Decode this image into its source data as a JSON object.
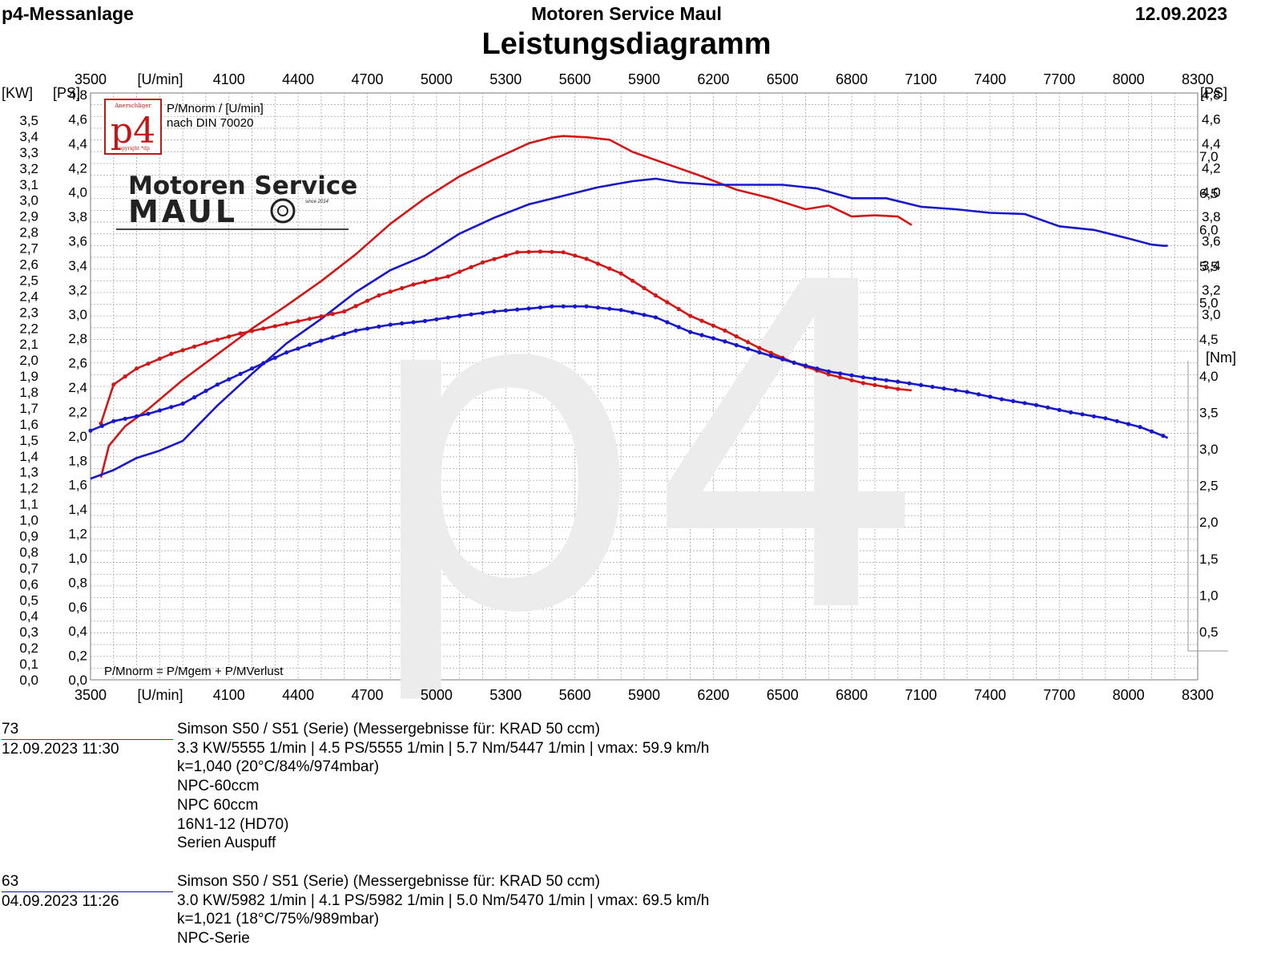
{
  "header": {
    "left": "p4-Messanlage",
    "center": "Motoren Service Maul",
    "right": "12.09.2023",
    "title": "Leistungsdiagramm"
  },
  "chart_data": {
    "type": "line",
    "title": "Leistungsdiagramm",
    "x_unit_label": "[U/min]",
    "x_ticks": [
      3500,
      4100,
      4400,
      4700,
      5000,
      5300,
      5600,
      5900,
      6200,
      6500,
      6800,
      7100,
      7400,
      7700,
      8000,
      8300
    ],
    "x_tick_labels": [
      "3500",
      "4100",
      "4400",
      "4700",
      "5000",
      "5300",
      "5600",
      "5900",
      "6200",
      "6500",
      "6800",
      "7100",
      "7400",
      "7700",
      "8000",
      "8300"
    ],
    "xlim": [
      3500,
      8300
    ],
    "left_axis_kw": {
      "unit": "[KW]",
      "range": [
        0,
        3.5
      ],
      "tick_labels": [
        "0,0",
        "0,1",
        "0,2",
        "0,3",
        "0,4",
        "0,5",
        "0,6",
        "0,7",
        "0,8",
        "0,9",
        "1,0",
        "1,1",
        "1,2",
        "1,3",
        "1,4",
        "1,5",
        "1,6",
        "1,7",
        "1,8",
        "1,9",
        "2,0",
        "2,1",
        "2,2",
        "2,3",
        "2,4",
        "2,5",
        "2,6",
        "2,7",
        "2,8",
        "2,9",
        "3,0",
        "3,1",
        "3,2",
        "3,3",
        "3,4",
        "3,5"
      ]
    },
    "left_axis_ps": {
      "unit": "[PS]",
      "range": [
        0,
        4.8
      ],
      "tick_labels": [
        "0,0",
        "0,2",
        "0,4",
        "0,6",
        "0,8",
        "1,0",
        "1,2",
        "1,4",
        "1,6",
        "1,8",
        "2,0",
        "2,2",
        "2,4",
        "2,6",
        "2,8",
        "3,0",
        "3,2",
        "3,4",
        "3,6",
        "3,8",
        "4,0",
        "4,2",
        "4,4",
        "4,6",
        "4,8"
      ]
    },
    "right_axis_ps": {
      "unit": "[PS]",
      "range": [
        3.0,
        4.8
      ],
      "tick_labels": [
        "3,0",
        "3,2",
        "3,4",
        "3,6",
        "3,8",
        "4,0",
        "4,2",
        "4,4",
        "4,6",
        "4,8"
      ]
    },
    "right_axis_nm": {
      "unit": "[Nm]",
      "range": [
        0.5,
        7.0
      ],
      "tick_labels": [
        "0,5",
        "1,0",
        "1,5",
        "2,0",
        "2,5",
        "3,0",
        "3,5",
        "4,0",
        "4,5",
        "5,0",
        "5,5",
        "6,0",
        "6,5",
        "7,0"
      ]
    },
    "info_top": [
      "P/Mnorm / [U/min]",
      "nach DIN 70020"
    ],
    "info_bottom": "P/Mnorm = P/Mgem + P/MVerlust",
    "watermark": "p4",
    "logo_text": {
      "p4_badge": "p4",
      "badge_top": "Anerschliger",
      "badge_bottom": "copyright *dp",
      "brand_line1": "Motoren Service",
      "brand_line2": "MAUL",
      "brand_since": "since 2014"
    },
    "colors": {
      "run73": "#d01818",
      "run63": "#1818c8",
      "grid": "#9a9a9a"
    },
    "series": [
      {
        "name": "73",
        "quantity": "power",
        "unit": "PS",
        "x": [
          3545,
          3580,
          3650,
          3750,
          3900,
          4050,
          4200,
          4350,
          4500,
          4650,
          4800,
          4950,
          5100,
          5250,
          5400,
          5500,
          5550,
          5650,
          5750,
          5850,
          6000,
          6150,
          6300,
          6450,
          6600,
          6700,
          6800,
          6900,
          7000,
          7060
        ],
        "y": [
          1.66,
          1.92,
          2.08,
          2.22,
          2.46,
          2.67,
          2.88,
          3.07,
          3.27,
          3.49,
          3.74,
          3.95,
          4.13,
          4.27,
          4.4,
          4.45,
          4.46,
          4.45,
          4.43,
          4.33,
          4.23,
          4.13,
          4.02,
          3.95,
          3.86,
          3.89,
          3.8,
          3.81,
          3.8,
          3.73
        ]
      },
      {
        "name": "63",
        "quantity": "power",
        "unit": "PS",
        "x": [
          3500,
          3600,
          3700,
          3800,
          3900,
          4050,
          4200,
          4350,
          4500,
          4650,
          4800,
          4950,
          5100,
          5250,
          5400,
          5550,
          5700,
          5850,
          5950,
          6050,
          6200,
          6350,
          6500,
          6650,
          6800,
          6950,
          7100,
          7250,
          7400,
          7550,
          7700,
          7850,
          8000,
          8100,
          8150,
          8170
        ],
        "y": [
          1.65,
          1.72,
          1.82,
          1.88,
          1.96,
          2.25,
          2.51,
          2.76,
          2.96,
          3.18,
          3.36,
          3.48,
          3.66,
          3.79,
          3.9,
          3.97,
          4.04,
          4.09,
          4.11,
          4.08,
          4.06,
          4.06,
          4.06,
          4.03,
          3.95,
          3.95,
          3.88,
          3.86,
          3.83,
          3.82,
          3.72,
          3.69,
          3.62,
          3.57,
          3.56,
          3.56
        ]
      },
      {
        "name": "73",
        "quantity": "torque",
        "unit": "Nm",
        "x": [
          3545,
          3600,
          3700,
          3850,
          4000,
          4150,
          4300,
          4450,
          4600,
          4750,
          4900,
          5050,
          5200,
          5350,
          5450,
          5550,
          5650,
          5800,
          5950,
          6100,
          6250,
          6400,
          6550,
          6700,
          6850,
          7000,
          7060
        ],
        "y": [
          3.35,
          3.88,
          4.1,
          4.3,
          4.45,
          4.58,
          4.68,
          4.78,
          4.88,
          5.1,
          5.25,
          5.36,
          5.55,
          5.69,
          5.7,
          5.69,
          5.6,
          5.4,
          5.1,
          4.82,
          4.62,
          4.38,
          4.18,
          4.02,
          3.9,
          3.82,
          3.8
        ]
      },
      {
        "name": "63",
        "quantity": "torque",
        "unit": "Nm",
        "x": [
          3500,
          3600,
          3750,
          3900,
          4050,
          4200,
          4350,
          4500,
          4650,
          4800,
          4950,
          5100,
          5250,
          5400,
          5500,
          5650,
          5800,
          5950,
          6100,
          6250,
          6400,
          6550,
          6700,
          6850,
          7000,
          7150,
          7300,
          7450,
          7600,
          7750,
          7900,
          8050,
          8150,
          8170
        ],
        "y": [
          3.25,
          3.38,
          3.48,
          3.62,
          3.88,
          4.1,
          4.32,
          4.48,
          4.62,
          4.7,
          4.75,
          4.82,
          4.88,
          4.92,
          4.95,
          4.95,
          4.9,
          4.8,
          4.6,
          4.47,
          4.32,
          4.18,
          4.06,
          3.98,
          3.92,
          3.85,
          3.78,
          3.68,
          3.6,
          3.5,
          3.42,
          3.3,
          3.18,
          3.15
        ]
      }
    ]
  },
  "legend": [
    {
      "id": "73",
      "datetime": "12.09.2023  11:30",
      "lines": [
        "Simson S50 / S51 (Serie) (Messergebnisse für: KRAD 50 ccm)",
        "3.3 KW/5555 1/min  |  4.5 PS/5555 1/min  |  5.7 Nm/5447 1/min | vmax: 59.9 km/h",
        "k=1,040 (20°C/84%/974mbar)",
        "NPC-60ccm",
        "NPC 60ccm",
        "16N1-12 (HD70)",
        "Serien Auspuff"
      ]
    },
    {
      "id": "63",
      "datetime": "04.09.2023  11:26",
      "lines": [
        "Simson S50 / S51 (Serie) (Messergebnisse für: KRAD 50 ccm)",
        "3.0 KW/5982 1/min  |  4.1 PS/5982 1/min  |  5.0 Nm/5470 1/min | vmax: 69.5 km/h",
        "k=1,021 (18°C/75%/989mbar)",
        "NPC-Serie"
      ]
    }
  ]
}
